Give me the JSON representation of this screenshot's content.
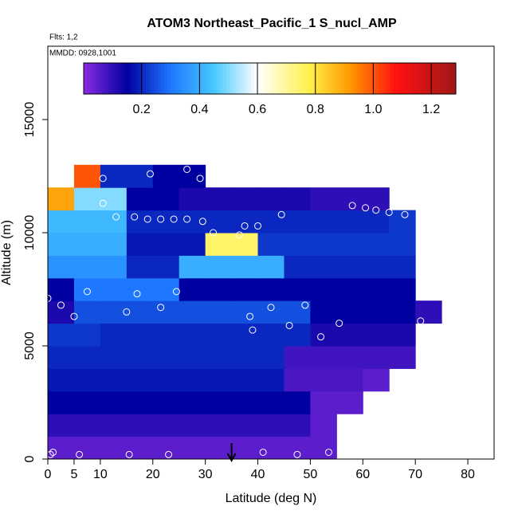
{
  "chart_data": {
    "type": "heatmap",
    "title": "ATOM3 Northeast_Pacific_1 S_nucl_AMP",
    "subtitle": "Flts: 1,2",
    "annotation": "MMDD: 0928,1001",
    "x_label": "Latitude (deg N)",
    "y_label": "Altitude (m)",
    "xlim": [
      0,
      85
    ],
    "ylim": [
      0,
      18240
    ],
    "xticks": [
      0,
      5,
      10,
      20,
      30,
      40,
      50,
      60,
      70,
      80
    ],
    "yticks": [
      0,
      5000,
      10000,
      15000
    ],
    "x_edges": [
      0,
      5,
      10,
      15,
      20,
      25,
      30,
      35,
      40,
      45,
      50,
      55,
      60,
      65,
      70,
      75
    ],
    "y_edges": [
      0,
      1000,
      2000,
      3000,
      4000,
      5000,
      6000,
      7000,
      8000,
      9000,
      10000,
      11000,
      12000,
      13000
    ],
    "z": [
      [
        0.05,
        0.05,
        0.05,
        0.05,
        0.05,
        0.05,
        0.05,
        0.05,
        0.05,
        0.05,
        0.05,
        null,
        null,
        null,
        null
      ],
      [
        0.1,
        0.1,
        0.1,
        0.1,
        0.1,
        0.1,
        0.1,
        0.1,
        0.1,
        0.1,
        0.05,
        null,
        null,
        null,
        null
      ],
      [
        0.15,
        0.15,
        0.15,
        0.15,
        0.15,
        0.15,
        0.15,
        0.15,
        0.15,
        0.15,
        0.05,
        0.05,
        null,
        null,
        null
      ],
      [
        0.18,
        0.18,
        0.18,
        0.18,
        0.18,
        0.18,
        0.18,
        0.18,
        0.18,
        0.07,
        0.07,
        0.07,
        0.05,
        null,
        null
      ],
      [
        0.2,
        0.2,
        0.2,
        0.2,
        0.2,
        0.2,
        0.2,
        0.2,
        0.2,
        0.08,
        0.08,
        0.08,
        0.08,
        0.08,
        null
      ],
      [
        0.22,
        0.22,
        0.2,
        0.2,
        0.2,
        0.2,
        0.2,
        0.2,
        0.2,
        0.2,
        0.12,
        0.12,
        0.12,
        0.12,
        null
      ],
      [
        0.12,
        0.25,
        0.25,
        0.25,
        0.25,
        0.25,
        0.25,
        0.25,
        0.25,
        0.25,
        0.15,
        0.15,
        0.15,
        0.15,
        0.1
      ],
      [
        0.15,
        0.3,
        0.3,
        0.3,
        0.3,
        0.15,
        0.15,
        0.15,
        0.15,
        0.15,
        0.15,
        0.15,
        0.15,
        0.15,
        null
      ],
      [
        0.35,
        0.35,
        0.35,
        0.2,
        0.2,
        0.4,
        0.4,
        0.4,
        0.4,
        0.2,
        0.2,
        0.2,
        0.2,
        0.2,
        null
      ],
      [
        0.4,
        0.4,
        0.4,
        0.18,
        0.18,
        0.18,
        0.75,
        0.75,
        0.22,
        0.22,
        0.22,
        0.22,
        0.22,
        0.22,
        null
      ],
      [
        0.42,
        0.42,
        0.42,
        0.2,
        0.2,
        0.2,
        0.2,
        0.2,
        0.2,
        0.2,
        0.2,
        0.2,
        0.2,
        0.22,
        null
      ],
      [
        0.9,
        0.5,
        0.5,
        0.15,
        0.15,
        0.12,
        0.12,
        0.12,
        0.12,
        0.12,
        0.1,
        0.1,
        0.1,
        null,
        null
      ],
      [
        null,
        1.0,
        0.2,
        0.2,
        0.15,
        0.15,
        null,
        null,
        null,
        null,
        null,
        null,
        null,
        null,
        null
      ]
    ],
    "zlim": [
      0,
      1.285
    ],
    "colorbar_ticks": [
      0.2,
      0.4,
      0.6,
      0.8,
      {
        "value": 1,
        "label": "1.0"
      },
      1.2
    ],
    "colormap": [
      {
        "value": 0,
        "color": "#8a2be2"
      },
      {
        "value": 0.15,
        "color": "#0000a0"
      },
      {
        "value": 0.3,
        "color": "#1e78ff"
      },
      {
        "value": 0.45,
        "color": "#46c8ff"
      },
      {
        "value": 0.6,
        "color": "#ffffff"
      },
      {
        "value": 0.78,
        "color": "#fff04a"
      },
      {
        "value": 0.92,
        "color": "#ff9900"
      },
      {
        "value": 1.08,
        "color": "#ff1010"
      },
      {
        "value": 1.285,
        "color": "#a01818"
      }
    ],
    "points": {
      "color": "#ffffff",
      "x": [
        0,
        0.5,
        1,
        2.5,
        5,
        6,
        7.5,
        10.5,
        10.5,
        13,
        15,
        15.5,
        16.5,
        17,
        19,
        19.5,
        21.5,
        21.5,
        23,
        24,
        24.5,
        26.5,
        26.5,
        29,
        29.5,
        31.5,
        36.5,
        37.5,
        38.5,
        39,
        40,
        41,
        42.5,
        44.5,
        46,
        47.5,
        49,
        52,
        53.5,
        55.5,
        58,
        60.5,
        62.5,
        65,
        68,
        71
      ],
      "y": [
        7100,
        200,
        300,
        6800,
        6300,
        200,
        7400,
        11300,
        12400,
        10700,
        6500,
        200,
        10700,
        7300,
        10600,
        12600,
        6700,
        10600,
        200,
        10600,
        7400,
        10600,
        12800,
        12400,
        10500,
        10000,
        9900,
        10300,
        6300,
        5700,
        10300,
        300,
        6700,
        10800,
        5900,
        200,
        6800,
        5400,
        300,
        6000,
        11200,
        11100,
        11000,
        10900,
        10800,
        6100
      ]
    },
    "arrow_x": 35
  }
}
